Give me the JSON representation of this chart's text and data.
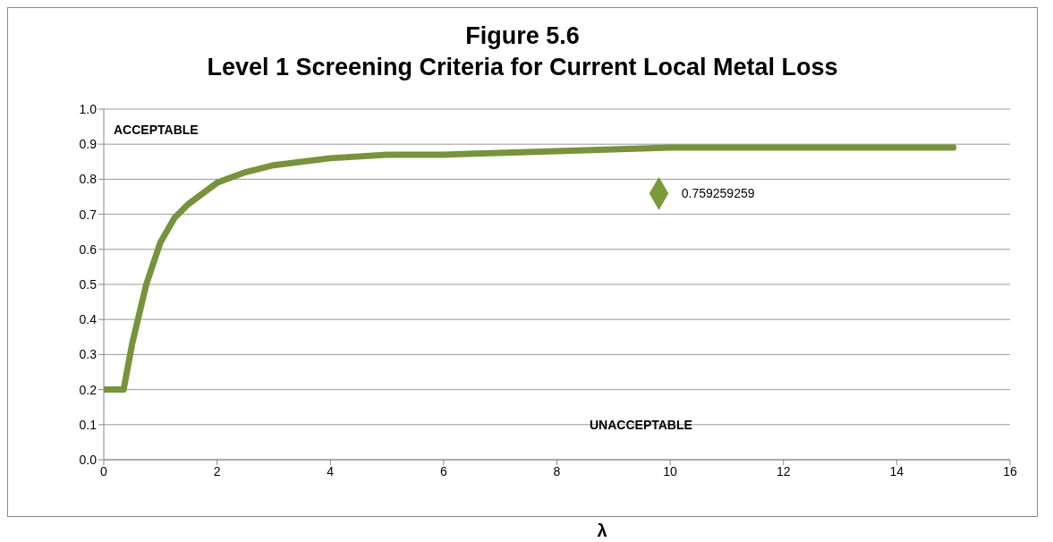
{
  "chart_data": {
    "type": "line",
    "title": "Figure 5.6",
    "subtitle": "Level 1 Screening Criteria for Current Local Metal Loss",
    "xlabel": "λ",
    "annotations": [
      "ACCEPTABLE",
      "UNACCEPTABLE"
    ],
    "series": [
      {
        "color": "#77933c",
        "marker": "none",
        "x": [
          0,
          0.2,
          0.35,
          0.5,
          0.75,
          1,
          1.25,
          1.5,
          2,
          2.5,
          3,
          4,
          5,
          6,
          8,
          10,
          12,
          15
        ],
        "values": [
          0.2,
          0.2,
          0.2,
          0.33,
          0.5,
          0.62,
          0.69,
          0.73,
          0.79,
          0.82,
          0.84,
          0.86,
          0.87,
          0.87,
          0.88,
          0.89,
          0.89,
          0.89
        ]
      },
      {
        "type": "scatter",
        "color": "#7a9a3a",
        "marker": "diamond",
        "x": [
          9.8
        ],
        "values": [
          0.759259259
        ],
        "value_labels": [
          "0.759259259"
        ]
      }
    ],
    "xlim": [
      0,
      16
    ],
    "xticks": [
      0,
      2,
      4,
      6,
      8,
      10,
      12,
      14,
      16
    ],
    "ylim": [
      0,
      1
    ],
    "yticks": [
      {
        "value": 0,
        "label": "0.0"
      },
      {
        "value": 0.1,
        "label": "0.1"
      },
      {
        "value": 0.2,
        "label": "0.2"
      },
      {
        "value": 0.3,
        "label": "0.3"
      },
      {
        "value": 0.4,
        "label": "0.4"
      },
      {
        "value": 0.5,
        "label": "0.5"
      },
      {
        "value": 0.6,
        "label": "0.6"
      },
      {
        "value": 0.7,
        "label": "0.7"
      },
      {
        "value": 0.8,
        "label": "0.8"
      },
      {
        "value": 0.9,
        "label": "0.9"
      },
      {
        "value": 1,
        "label": "1.0"
      }
    ],
    "grid": "y"
  }
}
